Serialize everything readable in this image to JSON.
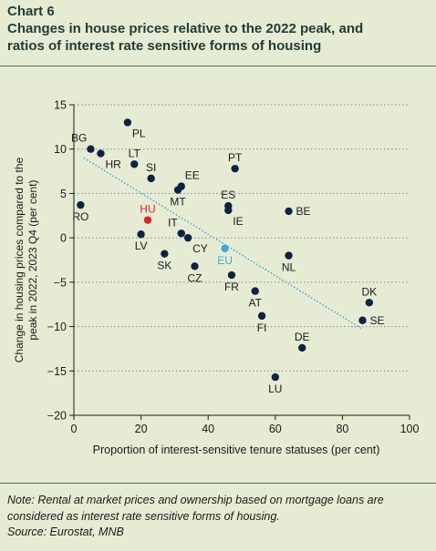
{
  "header": {
    "chart_number": "Chart 6",
    "title_line1": "Changes in house prices relative to the 2022 peak, and",
    "title_line2": "ratios of interest rate sensitive forms of housing"
  },
  "footer": {
    "note": "Note: Rental at market prices and ownership based on mortgage loans are considered as interest rate sensitive forms of housing.",
    "source": "Source: Eurostat, MNB"
  },
  "colors": {
    "point": "#0d2344",
    "hu": "#e02424",
    "eu": "#3da6da",
    "trend": "#3da6da",
    "grid": "#7a8a84",
    "axis": "#1a1a1a"
  },
  "chart_data": {
    "type": "scatter",
    "xlabel": "Proportion of interest-sensitive tenure statuses (per cent)",
    "ylabel_line1": "Change in housing prices compared to the",
    "ylabel_line2": "peak in 2022, 2023 Q4 (per cent)",
    "xlim": [
      0,
      100
    ],
    "ylim": [
      -20,
      15
    ],
    "x_ticks": [
      0,
      20,
      40,
      60,
      80,
      100
    ],
    "y_ticks": [
      15,
      10,
      5,
      0,
      -5,
      -10,
      -15,
      -20
    ],
    "grid": "dotted-horizontal",
    "points": [
      {
        "label": "PL",
        "x": 16,
        "y": 13.0,
        "pos": "below-right"
      },
      {
        "label": "BG",
        "x": 5,
        "y": 10.0,
        "pos": "above-left"
      },
      {
        "label": "HR",
        "x": 8,
        "y": 9.5,
        "pos": "below-right"
      },
      {
        "label": "LT",
        "x": 18,
        "y": 8.3,
        "pos": "above"
      },
      {
        "label": "SI",
        "x": 23,
        "y": 6.7,
        "pos": "above"
      },
      {
        "label": "EE",
        "x": 32,
        "y": 5.8,
        "pos": "above-right"
      },
      {
        "label": "MT",
        "x": 31,
        "y": 5.4,
        "pos": "below"
      },
      {
        "label": "PT",
        "x": 48,
        "y": 7.8,
        "pos": "above"
      },
      {
        "label": "ES",
        "x": 46,
        "y": 3.6,
        "pos": "above"
      },
      {
        "label": "IE",
        "x": 46,
        "y": 3.1,
        "pos": "below-right"
      },
      {
        "label": "BE",
        "x": 64,
        "y": 3.0,
        "pos": "right"
      },
      {
        "label": "RO",
        "x": 2,
        "y": 3.7,
        "pos": "below"
      },
      {
        "label": "HU",
        "x": 22,
        "y": 2.0,
        "pos": "above",
        "highlight": "hu"
      },
      {
        "label": "IT",
        "x": 32,
        "y": 0.5,
        "pos": "above-left"
      },
      {
        "label": "LV",
        "x": 20,
        "y": 0.4,
        "pos": "below"
      },
      {
        "label": "CY",
        "x": 34,
        "y": 0.0,
        "pos": "below-right"
      },
      {
        "label": "SK",
        "x": 27,
        "y": -1.8,
        "pos": "below"
      },
      {
        "label": "EU",
        "x": 45,
        "y": -1.2,
        "pos": "below",
        "highlight": "eu"
      },
      {
        "label": "NL",
        "x": 64,
        "y": -2.0,
        "pos": "below"
      },
      {
        "label": "CZ",
        "x": 36,
        "y": -3.2,
        "pos": "below"
      },
      {
        "label": "FR",
        "x": 47,
        "y": -4.2,
        "pos": "below"
      },
      {
        "label": "AT",
        "x": 54,
        "y": -6.0,
        "pos": "below"
      },
      {
        "label": "FI",
        "x": 56,
        "y": -8.8,
        "pos": "below"
      },
      {
        "label": "DK",
        "x": 88,
        "y": -7.3,
        "pos": "above"
      },
      {
        "label": "SE",
        "x": 86,
        "y": -9.3,
        "pos": "right"
      },
      {
        "label": "DE",
        "x": 68,
        "y": -12.4,
        "pos": "above"
      },
      {
        "label": "LU",
        "x": 60,
        "y": -15.7,
        "pos": "below"
      }
    ],
    "trendline": {
      "x1": 3,
      "y1": 9,
      "x2": 86,
      "y2": -10.3
    }
  }
}
